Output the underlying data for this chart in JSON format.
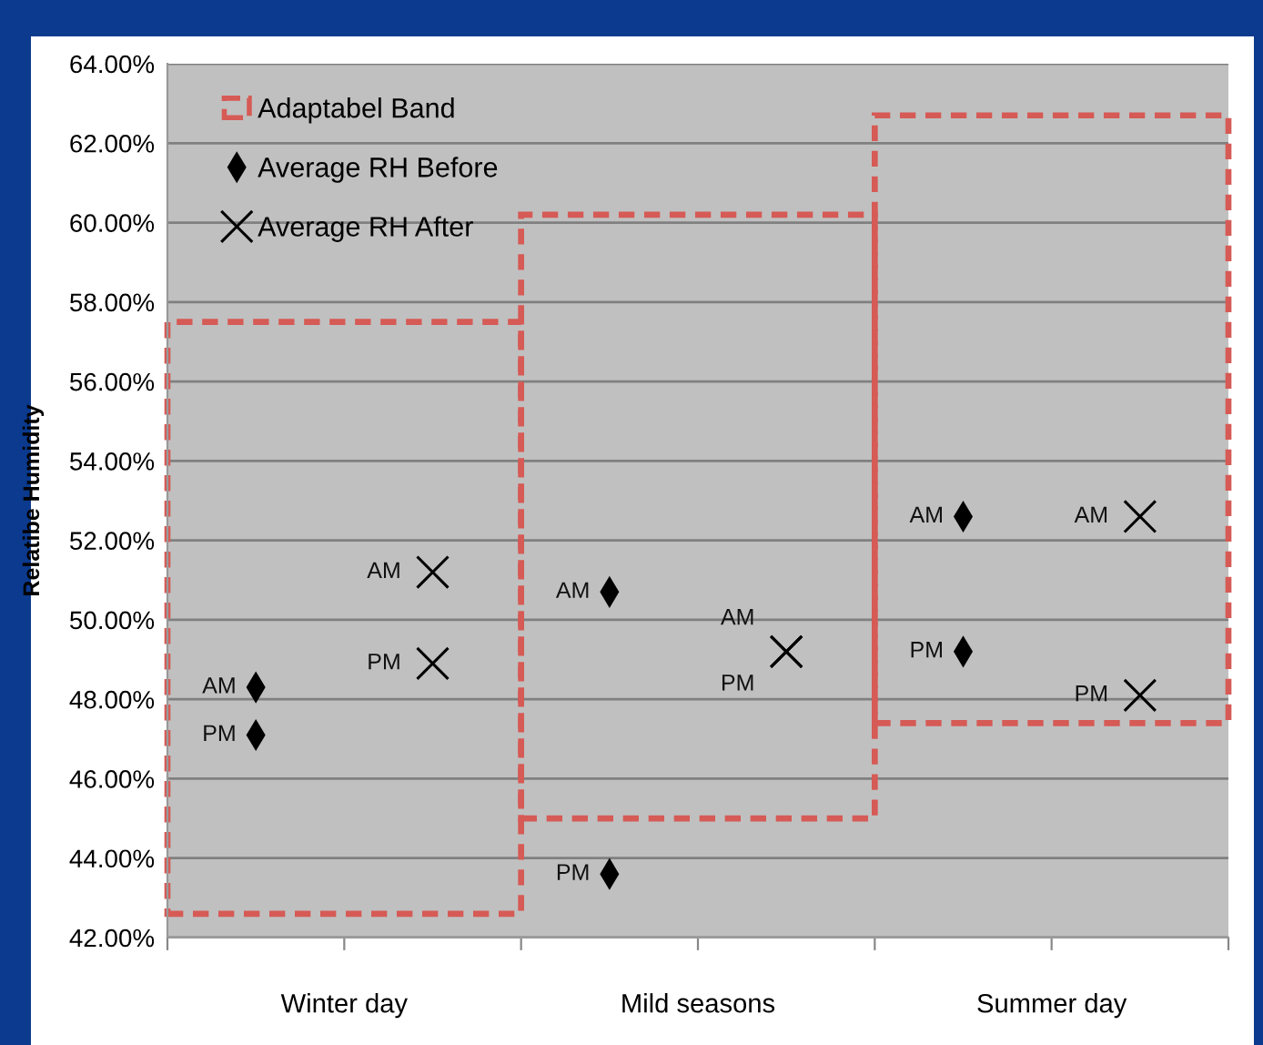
{
  "chart_data": {
    "type": "scatter",
    "ylabel": "Relatibe Humidity",
    "categories": [
      "Winter day",
      "Mild seasons",
      "Summer day"
    ],
    "ylim": [
      42,
      64
    ],
    "yticks": [
      {
        "value": 42,
        "label": "42.00%"
      },
      {
        "value": 44,
        "label": "44.00%"
      },
      {
        "value": 46,
        "label": "46.00%"
      },
      {
        "value": 48,
        "label": "48.00%"
      },
      {
        "value": 50,
        "label": "50.00%"
      },
      {
        "value": 52,
        "label": "52.00%"
      },
      {
        "value": 54,
        "label": "54.00%"
      },
      {
        "value": 56,
        "label": "56.00%"
      },
      {
        "value": 58,
        "label": "58.00%"
      },
      {
        "value": 60,
        "label": "60.00%"
      },
      {
        "value": 62,
        "label": "62.00%"
      },
      {
        "value": 64,
        "label": "64.00%"
      }
    ],
    "grid": "y",
    "legend": "top left",
    "series": [
      {
        "name": "Adaptabel Band",
        "type": "bar",
        "line_style": "dashed",
        "color": "#d65a55",
        "base": [
          42.6,
          45.0,
          47.4
        ],
        "values": [
          14.9,
          15.2,
          15.3
        ]
      },
      {
        "name": "Average RH Before",
        "marker": "diamond",
        "color": "#000000",
        "x": [
          "Winter day",
          "Winter day",
          "Mild seasons",
          "Mild seasons",
          "Summer day",
          "Summer day"
        ],
        "values": [
          48.3,
          47.1,
          50.7,
          43.6,
          52.6,
          49.2
        ],
        "value_labels": [
          "AM",
          "PM",
          "AM",
          "PM",
          "AM",
          "PM"
        ]
      },
      {
        "name": "Average RH After",
        "marker": "cross",
        "color": "#000000",
        "x": [
          "Winter day",
          "Winter day",
          "Mild seasons",
          "Mild seasons",
          "Summer day",
          "Summer day"
        ],
        "values": [
          51.2,
          48.9,
          49.2,
          49.2,
          52.6,
          48.1
        ],
        "value_labels": [
          "AM",
          "PM",
          "AM",
          "PM",
          "AM",
          "PM"
        ]
      }
    ]
  }
}
